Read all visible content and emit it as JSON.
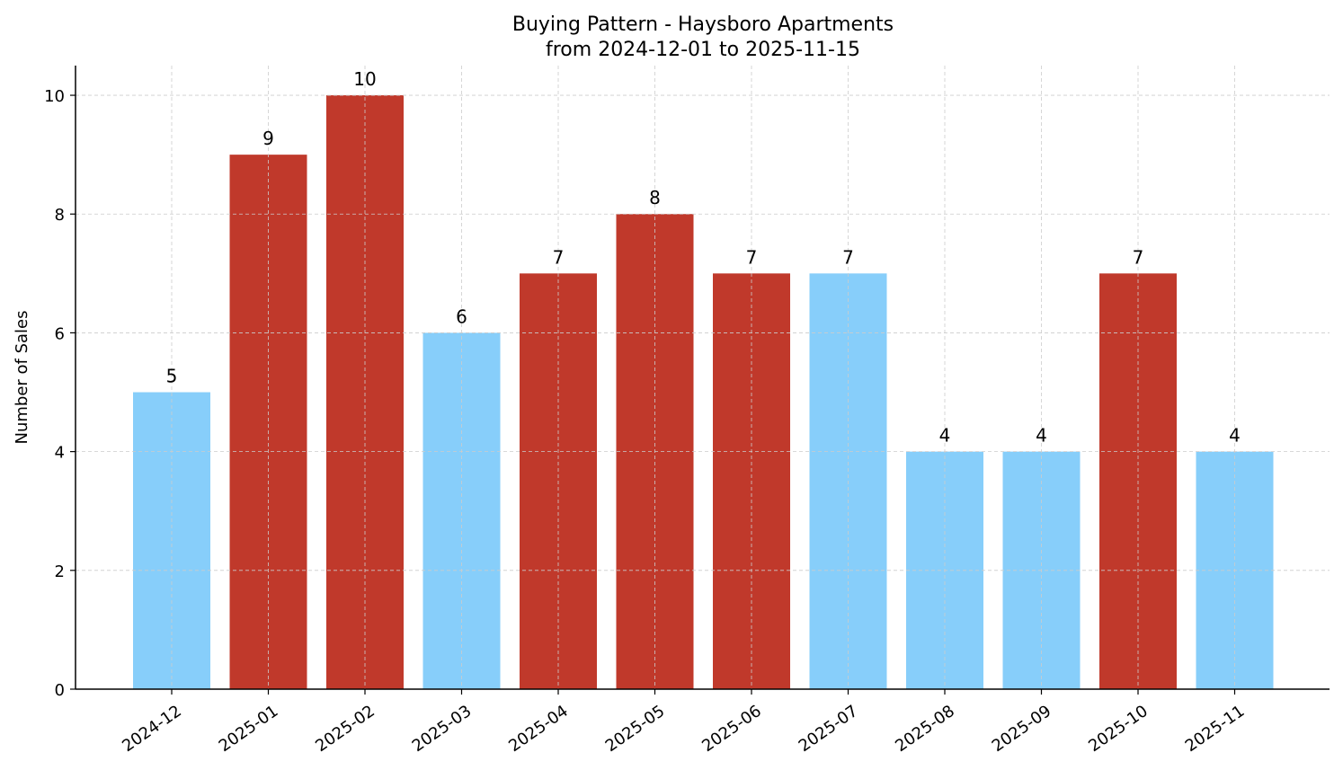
{
  "chart_data": {
    "type": "bar",
    "title": "Buying Pattern - Haysboro Apartments",
    "subtitle": "from 2024-12-01 to 2025-11-15",
    "xlabel": "",
    "ylabel": "Number of Sales",
    "ylim": [
      0,
      10.5
    ],
    "yticks": [
      0,
      2,
      4,
      6,
      8,
      10
    ],
    "grid": true,
    "categories": [
      "2024-12",
      "2025-01",
      "2025-02",
      "2025-03",
      "2025-04",
      "2025-05",
      "2025-06",
      "2025-07",
      "2025-08",
      "2025-09",
      "2025-10",
      "2025-11"
    ],
    "values": [
      5,
      9,
      10,
      6,
      7,
      8,
      7,
      7,
      4,
      4,
      7,
      4
    ],
    "bar_colors": [
      "#87CEFA",
      "#C0392B",
      "#C0392B",
      "#87CEFA",
      "#C0392B",
      "#C0392B",
      "#C0392B",
      "#87CEFA",
      "#87CEFA",
      "#87CEFA",
      "#C0392B",
      "#87CEFA"
    ]
  }
}
